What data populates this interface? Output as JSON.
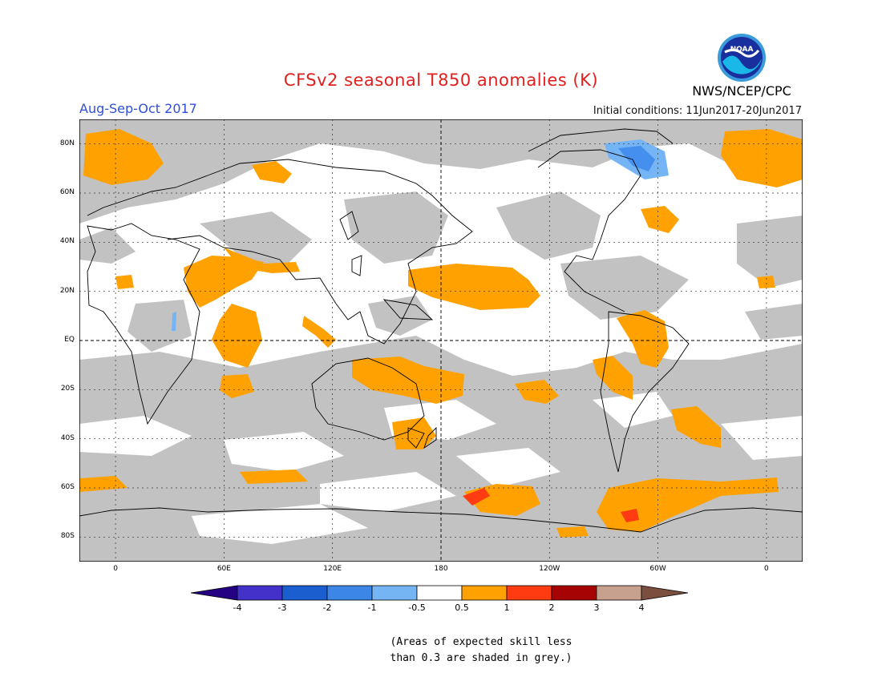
{
  "header": {
    "title": "CFSv2 seasonal T850 anomalies (K)",
    "season": "Aug-Sep-Oct 2017",
    "initial_conditions": "Initial conditions: 11Jun2017-20Jun2017",
    "organization": "NWS/NCEP/CPC",
    "logo_text": "NOAA"
  },
  "map": {
    "projection": "equirectangular",
    "lat_range": [
      -90,
      90
    ],
    "lon_range": [
      -20,
      380
    ],
    "lat_ticks": [
      {
        "value": 80,
        "label": "80N"
      },
      {
        "value": 60,
        "label": "60N"
      },
      {
        "value": 40,
        "label": "40N"
      },
      {
        "value": 20,
        "label": "20N"
      },
      {
        "value": 0,
        "label": "EQ"
      },
      {
        "value": -20,
        "label": "20S"
      },
      {
        "value": -40,
        "label": "40S"
      },
      {
        "value": -60,
        "label": "60S"
      },
      {
        "value": -80,
        "label": "80S"
      }
    ],
    "lon_ticks": [
      {
        "value": 0,
        "label": "0"
      },
      {
        "value": 60,
        "label": "60E"
      },
      {
        "value": 120,
        "label": "120E"
      },
      {
        "value": 180,
        "label": "180"
      },
      {
        "value": 240,
        "label": "120W"
      },
      {
        "value": 300,
        "label": "60W"
      },
      {
        "value": 360,
        "label": "0"
      }
    ],
    "colors": {
      "grey_low_skill": "#c2c2c2",
      "anomaly_0_5_to_1": "#ffa100",
      "anomaly_1_to_2": "#ff3b12",
      "anomaly_neg_0_5_to_neg_1": "#75b5f5",
      "anomaly_neg_1_to_neg_2": "#4590ee",
      "coastline": "#000000"
    }
  },
  "colorbar": {
    "colors": [
      "#240082",
      "#4431c9",
      "#1b5ecf",
      "#3c86e8",
      "#76b5f3",
      "#ffffff",
      "#ffa100",
      "#ff3b12",
      "#a60404",
      "#c7a18d",
      "#7b4f3e"
    ],
    "labels": [
      "-4",
      "-3",
      "-2",
      "-1",
      "-0.5",
      "0.5",
      "1",
      "2",
      "3",
      "4"
    ]
  },
  "note": {
    "line1": "(Areas of expected skill less",
    "line2": "than 0.3 are shaded in grey.)"
  }
}
